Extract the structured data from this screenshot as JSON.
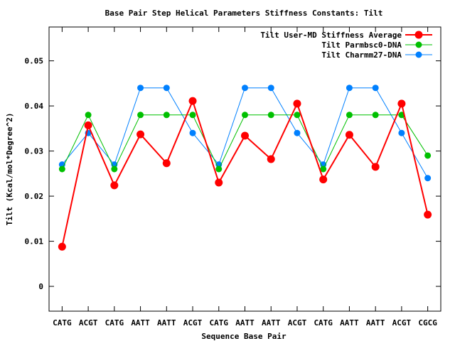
{
  "chart_data": {
    "type": "line",
    "title": "Base Pair Step Helical Parameters Stiffness Constants: Tilt",
    "xlabel": "Sequence Base Pair",
    "ylabel": "Tilt (Kcal/mol*Degree^2)",
    "categories": [
      "CATG",
      "ACGT",
      "CATG",
      "AATT",
      "AATT",
      "ACGT",
      "CATG",
      "AATT",
      "AATT",
      "ACGT",
      "CATG",
      "AATT",
      "AATT",
      "ACGT",
      "CGCG"
    ],
    "ylim": [
      -0.0055,
      0.0575
    ],
    "yticks": [
      0,
      0.01,
      0.02,
      0.03,
      0.04,
      0.05
    ],
    "ytick_labels": [
      "0",
      "0.01",
      "0.02",
      "0.03",
      "0.04",
      "0.05"
    ],
    "grid": false,
    "legend_position": "top-right",
    "series": [
      {
        "name": "Tilt User-MD Stiffness Average",
        "color": "#ff0000",
        "values": [
          0.0088,
          0.0357,
          0.0224,
          0.0337,
          0.0273,
          0.0411,
          0.023,
          0.0334,
          0.0282,
          0.0405,
          0.0237,
          0.0336,
          0.0265,
          0.0405,
          0.0159
        ]
      },
      {
        "name": "Tilt Parmbsc0-DNA",
        "color": "#00c000",
        "values": [
          0.026,
          0.038,
          0.026,
          0.038,
          0.038,
          0.038,
          0.026,
          0.038,
          0.038,
          0.038,
          0.026,
          0.038,
          0.038,
          0.038,
          0.029
        ]
      },
      {
        "name": "Tilt Charmm27-DNA",
        "color": "#0080ff",
        "values": [
          0.027,
          0.034,
          0.027,
          0.044,
          0.044,
          0.034,
          0.027,
          0.044,
          0.044,
          0.034,
          0.027,
          0.044,
          0.044,
          0.034,
          0.024
        ]
      }
    ]
  }
}
